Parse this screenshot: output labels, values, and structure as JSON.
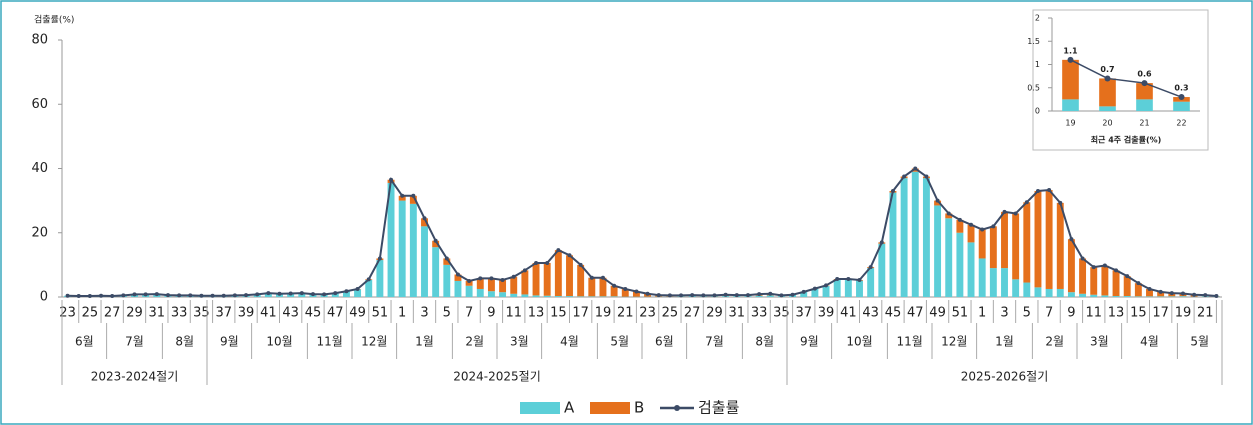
{
  "chart_data": [
    {
      "type": "bar",
      "stacked": true,
      "y_label": "검출률(%)",
      "categories": [
        "23",
        null,
        "25",
        null,
        "27",
        null,
        "29",
        null,
        "31",
        null,
        "33",
        null,
        "35",
        null,
        "37",
        null,
        "39",
        null,
        "41",
        null,
        "43",
        null,
        "45",
        null,
        "47",
        null,
        "49",
        null,
        "51",
        null,
        "1",
        null,
        "3",
        null,
        "5",
        null,
        "7",
        null,
        "9",
        null,
        "11",
        null,
        "13",
        null,
        "15",
        null,
        "17",
        null,
        "19",
        null,
        "21",
        null,
        "23",
        null,
        "25",
        null,
        "27",
        null,
        "29",
        null,
        "31",
        null,
        "33",
        null,
        "35",
        null,
        "37",
        null,
        "39",
        null,
        "41",
        null,
        "43",
        null,
        "45",
        null,
        "47",
        null,
        "49",
        null,
        "51",
        null,
        "1",
        null,
        "3",
        null,
        "5",
        null,
        "7",
        null,
        "9",
        null,
        "11",
        null,
        "13",
        null,
        "15",
        null,
        "17",
        null,
        "19",
        null,
        "21",
        null
      ],
      "month_labels": [
        "6월",
        "7월",
        "8월",
        "9월",
        "10월",
        "11월",
        "12월",
        "1월",
        "2월",
        "3월",
        "4월",
        "5월",
        "6월",
        "7월",
        "8월",
        "9월",
        "10월",
        "11월",
        "12월",
        "1월",
        "2월",
        "3월",
        "4월",
        "5월"
      ],
      "season_labels": [
        "2023-2024절기",
        "2024-2025절기",
        "2025-2026절기"
      ],
      "series": [
        {
          "name": "A",
          "color": "#5ccfd8",
          "values": [
            0.4,
            0.3,
            0.3,
            0.4,
            0.3,
            0.5,
            0.7,
            0.7,
            0.8,
            0.5,
            0.4,
            0.4,
            0.3,
            0.4,
            0.4,
            0.5,
            0.6,
            0.8,
            1.2,
            1.0,
            1.1,
            1.2,
            0.9,
            0.8,
            1.2,
            1.8,
            2.4,
            5.3,
            11.5,
            35.5,
            30,
            29,
            22,
            15.5,
            10,
            5,
            3.5,
            2.5,
            1.8,
            1.5,
            1,
            0.8,
            0.5,
            0.4,
            0.3,
            0.3,
            0.2,
            0.2,
            0.2,
            0.2,
            0.1,
            0.1,
            0.1,
            0.1,
            0.1,
            0.2,
            0.3,
            0.2,
            0.2,
            0.3,
            0.3,
            0.3,
            0.4,
            0.5,
            0.3,
            0.7,
            1.6,
            2.6,
            3.5,
            5.4,
            5.4,
            5.1,
            9,
            16.6,
            32.5,
            37,
            39,
            37,
            28.5,
            24.5,
            20,
            17,
            12,
            9,
            9,
            5.5,
            4.5,
            3,
            2.5,
            2.5,
            1.5,
            1,
            0.7,
            0.5,
            0.3,
            0.3,
            0.2,
            0.2,
            0.2,
            0.2,
            0.25,
            0.1,
            0.25,
            0.2
          ]
        },
        {
          "name": "B",
          "color": "#e5701c",
          "values": [
            0,
            0,
            0,
            0,
            0,
            0,
            0.1,
            0.1,
            0.1,
            0.1,
            0.1,
            0.1,
            0.1,
            0,
            0,
            0,
            0,
            0,
            0,
            0,
            0,
            0,
            0,
            0,
            0,
            0,
            0.1,
            0.2,
            0.5,
            1,
            1.5,
            2.5,
            2.5,
            2,
            2,
            2,
            1.5,
            3.3,
            4,
            3.8,
            5.3,
            7.5,
            10.1,
            10.2,
            14.3,
            12.7,
            9.8,
            5.8,
            5.8,
            3.3,
            2.4,
            1.6,
            0.9,
            0.5,
            0.4,
            0.3,
            0.3,
            0.3,
            0.3,
            0.4,
            0.3,
            0.3,
            0.5,
            0.5,
            0.2,
            0,
            0,
            0,
            0.1,
            0.2,
            0.2,
            0.2,
            0.3,
            0.4,
            0.5,
            0.5,
            1,
            0.5,
            1.5,
            1.5,
            4,
            5.5,
            9,
            13,
            17.5,
            20.5,
            25,
            30,
            30.8,
            26.8,
            16.5,
            11,
            8.6,
            9.3,
            8,
            6.2,
            4.1,
            2.3,
            1.4,
            1,
            0.85,
            0.6,
            0.35,
            0.1
          ]
        },
        {
          "name": "검출률",
          "type": "line",
          "color": "#3c4b66",
          "values": [
            0.4,
            0.3,
            0.3,
            0.4,
            0.3,
            0.5,
            0.8,
            0.8,
            0.9,
            0.6,
            0.5,
            0.5,
            0.4,
            0.4,
            0.4,
            0.5,
            0.6,
            0.8,
            1.2,
            1.0,
            1.1,
            1.2,
            0.9,
            0.8,
            1.2,
            1.8,
            2.5,
            5.5,
            12,
            36.5,
            31.5,
            31.5,
            24.5,
            17.5,
            12,
            7,
            5,
            5.8,
            5.8,
            5.3,
            6.3,
            8.3,
            10.6,
            10.6,
            14.6,
            13,
            10,
            6,
            6,
            3.5,
            2.5,
            1.7,
            1,
            0.6,
            0.5,
            0.5,
            0.6,
            0.5,
            0.5,
            0.7,
            0.6,
            0.6,
            0.9,
            1,
            0.5,
            0.7,
            1.6,
            2.6,
            3.6,
            5.6,
            5.6,
            5.3,
            9.3,
            17,
            33,
            37.5,
            40,
            37.5,
            30,
            26,
            24,
            22.5,
            21,
            22,
            26.5,
            26,
            29.5,
            33,
            33.3,
            29.3,
            18,
            12,
            9.3,
            9.8,
            8.3,
            6.5,
            4.3,
            2.5,
            1.6,
            1.2,
            1.1,
            0.7,
            0.6,
            0.3
          ]
        }
      ],
      "ylim": [
        0,
        80
      ],
      "yticks": [
        0,
        20,
        40,
        60,
        80
      ],
      "legend": "bottom"
    },
    {
      "type": "bar",
      "stacked": true,
      "x_label": "최근 4주 검출률(%)",
      "categories": [
        "19",
        "20",
        "21",
        "22"
      ],
      "series": [
        {
          "name": "A",
          "color": "#5ccfd8",
          "values": [
            0.25,
            0.1,
            0.25,
            0.2
          ]
        },
        {
          "name": "B",
          "color": "#e5701c",
          "values": [
            0.85,
            0.6,
            0.35,
            0.1
          ]
        },
        {
          "name": "검출률",
          "type": "line",
          "color": "#3c4b66",
          "values": [
            1.1,
            0.7,
            0.6,
            0.3
          ],
          "data_labels": true
        }
      ],
      "ylim": [
        0,
        2
      ],
      "yticks": [
        0,
        0.5,
        1,
        1.5,
        2
      ]
    }
  ]
}
